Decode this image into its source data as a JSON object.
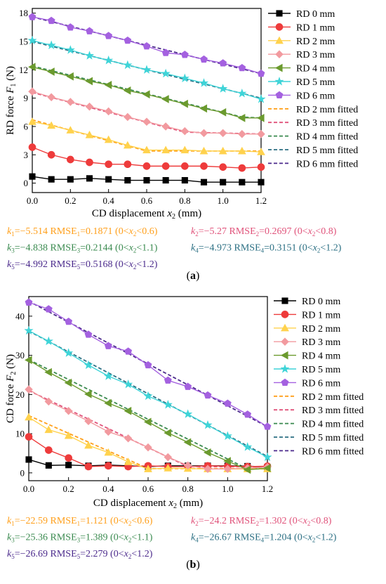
{
  "colors": {
    "rd0": "#000000",
    "rd1": "#ee3b3b",
    "rd2": "#ffd24d",
    "rd3": "#f29a9f",
    "rd4": "#6b9a2e",
    "rd5": "#3fd4d8",
    "rd6": "#a461e0",
    "fit2": "#ff9f1a",
    "fit3": "#e0527a",
    "fit4": "#3a8a4f",
    "fit5": "#2b6f83",
    "fit6": "#4b2a8c"
  },
  "chart_data": [
    {
      "type": "line",
      "panel_label": "(a)",
      "xlabel_text": "CD displacement ",
      "xlabel_var": "x",
      "xlabel_sub": "2",
      "xlabel_unit": " (mm)",
      "ylabel_text": "RD force ",
      "ylabel_var": "F",
      "ylabel_sub": "1",
      "ylabel_unit": " (N)",
      "xlim": [
        0,
        1.2
      ],
      "ylim": [
        -1,
        18.5
      ],
      "xticks": [
        "0.0",
        "0.2",
        "0.4",
        "0.6",
        "0.8",
        "1.0",
        "1.2"
      ],
      "yticks": [
        "0",
        "3",
        "6",
        "9",
        "12",
        "15",
        "18"
      ],
      "x": [
        0,
        0.1,
        0.2,
        0.3,
        0.4,
        0.5,
        0.6,
        0.7,
        0.8,
        0.9,
        1.0,
        1.1,
        1.2
      ],
      "series": [
        {
          "name": "RD 0 mm",
          "color_key": "rd0",
          "marker": "square",
          "values": [
            0.7,
            0.4,
            0.4,
            0.5,
            0.4,
            0.3,
            0.3,
            0.3,
            0.3,
            0.1,
            0.1,
            0.1,
            0.1
          ]
        },
        {
          "name": "RD 1 mm",
          "color_key": "rd1",
          "marker": "circle",
          "values": [
            3.8,
            3.0,
            2.5,
            2.2,
            2.0,
            2.0,
            1.8,
            1.8,
            1.8,
            1.8,
            1.7,
            1.6,
            1.7
          ]
        },
        {
          "name": "RD 2 mm",
          "color_key": "rd2",
          "marker": "triangle",
          "values": [
            6.5,
            6.1,
            5.6,
            5.1,
            4.6,
            4.0,
            3.5,
            3.5,
            3.5,
            3.4,
            3.4,
            3.4,
            3.3
          ]
        },
        {
          "name": "RD 3 mm",
          "color_key": "rd3",
          "marker": "diamond",
          "values": [
            9.7,
            9.1,
            8.6,
            8.1,
            7.6,
            7.0,
            6.5,
            6.0,
            5.5,
            5.3,
            5.3,
            5.2,
            5.2
          ]
        },
        {
          "name": "RD 4 mm",
          "color_key": "rd4",
          "marker": "triangle-left",
          "values": [
            12.3,
            11.8,
            11.3,
            10.8,
            10.4,
            9.8,
            9.4,
            8.9,
            8.4,
            7.9,
            7.5,
            6.9,
            6.9
          ]
        },
        {
          "name": "RD 5 mm",
          "color_key": "rd5",
          "marker": "star",
          "values": [
            15.1,
            14.6,
            14.1,
            13.5,
            13.0,
            12.5,
            12.0,
            11.6,
            11.1,
            10.6,
            10.0,
            9.5,
            8.9
          ]
        },
        {
          "name": "RD 6 mm",
          "color_key": "rd6",
          "marker": "pentagon",
          "values": [
            17.6,
            17.2,
            16.5,
            16.1,
            15.6,
            15.1,
            14.5,
            13.8,
            13.6,
            13.1,
            12.7,
            12.2,
            11.6
          ]
        }
      ],
      "fits": [
        {
          "name": "RD 2 mm fitted",
          "color_key": "fit2",
          "x": [
            0,
            0.6,
            1.2
          ],
          "values": [
            6.7,
            3.4,
            3.4
          ]
        },
        {
          "name": "RD 3 mm fitted",
          "color_key": "fit3",
          "x": [
            0,
            0.8,
            1.2
          ],
          "values": [
            9.6,
            5.4,
            5.2
          ]
        },
        {
          "name": "RD 4 mm fitted",
          "color_key": "fit4",
          "x": [
            0,
            1.1,
            1.2
          ],
          "values": [
            12.4,
            7.0,
            6.9
          ]
        },
        {
          "name": "RD 5 mm fitted",
          "color_key": "fit5",
          "x": [
            0,
            1.2
          ],
          "values": [
            15.0,
            9.0
          ]
        },
        {
          "name": "RD 6 mm fitted",
          "color_key": "fit6",
          "x": [
            0,
            1.2
          ],
          "values": [
            17.6,
            11.6
          ]
        }
      ],
      "fit_params": [
        {
          "color_key": "fit2",
          "k": "1",
          "kval": "=−5.514",
          "rmse_sub": "1",
          "rmse_val": "=0.1871",
          "cond_pre": "(0<",
          "cond_var": "x",
          "cond_sub": "2",
          "cond_post": "<0.6)"
        },
        {
          "color_key": "fit3",
          "k": "2",
          "kval": "=−5.27",
          "rmse_sub": "2",
          "rmse_val": "=0.2697",
          "cond_pre": "(0<",
          "cond_var": "x",
          "cond_sub": "2",
          "cond_post": "<0.8)"
        },
        {
          "color_key": "fit4",
          "k": "3",
          "kval": "=−4.838",
          "rmse_sub": "3",
          "rmse_val": "=0.2144",
          "cond_pre": "(0<",
          "cond_var": "x",
          "cond_sub": "2",
          "cond_post": "<1.1)"
        },
        {
          "color_key": "fit5",
          "k": "4",
          "kval": "=−4.973",
          "rmse_sub": "4",
          "rmse_val": "=0.3151",
          "cond_pre": "(0<",
          "cond_var": "x",
          "cond_sub": "2",
          "cond_post": "<1.2)"
        },
        {
          "color_key": "fit6",
          "k": "5",
          "kval": "=−4.992",
          "rmse_sub": "5",
          "rmse_val": "=0.5168",
          "cond_pre": "(0<",
          "cond_var": "x",
          "cond_sub": "2",
          "cond_post": "<1.2)"
        }
      ]
    },
    {
      "type": "line",
      "panel_label": "(b)",
      "xlabel_text": "CD displacement ",
      "xlabel_var": "x",
      "xlabel_sub": "2",
      "xlabel_unit": " (mm)",
      "ylabel_text": "CD force ",
      "ylabel_var": "F",
      "ylabel_sub": "2",
      "ylabel_unit": " (N)",
      "xlim": [
        0,
        1.2
      ],
      "ylim": [
        -2,
        45
      ],
      "xticks": [
        "0.0",
        "0.2",
        "0.4",
        "0.6",
        "0.8",
        "1.0",
        "1.2"
      ],
      "yticks": [
        "0",
        "10",
        "20",
        "30",
        "40"
      ],
      "x": [
        0,
        0.1,
        0.2,
        0.3,
        0.4,
        0.5,
        0.6,
        0.7,
        0.8,
        0.9,
        1.0,
        1.1,
        1.2
      ],
      "series": [
        {
          "name": "RD 0 mm",
          "color_key": "rd0",
          "marker": "square",
          "values": [
            3.4,
            1.9,
            2.0,
            1.8,
            2.0,
            1.8,
            1.6,
            1.8,
            1.8,
            1.8,
            1.8,
            1.7,
            1.5
          ]
        },
        {
          "name": "RD 1 mm",
          "color_key": "rd1",
          "marker": "circle",
          "values": [
            9.2,
            5.8,
            3.8,
            1.6,
            1.8,
            1.6,
            1.8,
            1.6,
            1.6,
            1.8,
            1.7,
            1.6,
            1.7
          ]
        },
        {
          "name": "RD 2 mm",
          "color_key": "rd2",
          "marker": "triangle",
          "values": [
            14.2,
            11.0,
            9.5,
            7.0,
            5.2,
            2.8,
            1.0,
            1.2,
            1.1,
            1.0,
            1.0,
            1.0,
            1.0
          ]
        },
        {
          "name": "RD 3 mm",
          "color_key": "rd3",
          "marker": "diamond",
          "values": [
            21.3,
            18.2,
            15.8,
            13.2,
            10.5,
            8.8,
            6.5,
            4.0,
            1.9,
            1.0,
            1.0,
            1.2,
            1.5
          ]
        },
        {
          "name": "RD 4 mm",
          "color_key": "rd4",
          "marker": "triangle-left",
          "values": [
            28.8,
            25.7,
            23.0,
            20.1,
            17.8,
            15.8,
            13.0,
            10.2,
            7.8,
            5.2,
            3.0,
            0.8,
            1.2
          ]
        },
        {
          "name": "RD 5 mm",
          "color_key": "rd5",
          "marker": "star",
          "values": [
            36.3,
            33.6,
            30.6,
            27.5,
            24.7,
            22.6,
            19.6,
            17.4,
            15.0,
            12.2,
            9.4,
            6.6,
            4.0
          ]
        },
        {
          "name": "RD 6 mm",
          "color_key": "rd6",
          "marker": "pentagon",
          "values": [
            43.5,
            41.8,
            38.6,
            35.3,
            32.4,
            31.0,
            27.5,
            23.6,
            22.0,
            19.8,
            17.7,
            14.9,
            11.8
          ]
        }
      ],
      "fits": [
        {
          "name": "RD 2 mm fitted",
          "color_key": "fit2",
          "x": [
            0,
            0.6,
            1.2
          ],
          "values": [
            14.6,
            1.1,
            1.1
          ]
        },
        {
          "name": "RD 3 mm fitted",
          "color_key": "fit3",
          "x": [
            0,
            0.8,
            1.2
          ],
          "values": [
            21.0,
            1.6,
            1.6
          ]
        },
        {
          "name": "RD 4 mm fitted",
          "color_key": "fit4",
          "x": [
            0,
            1.1,
            1.2
          ],
          "values": [
            28.9,
            1.0,
            1.0
          ]
        },
        {
          "name": "RD 5 mm fitted",
          "color_key": "fit5",
          "x": [
            0,
            1.2
          ],
          "values": [
            36.2,
            4.2
          ]
        },
        {
          "name": "RD 6 mm fitted",
          "color_key": "fit6",
          "x": [
            0,
            1.2
          ],
          "values": [
            43.8,
            11.8
          ]
        }
      ],
      "fit_params": [
        {
          "color_key": "fit2",
          "k": "1",
          "kval": "=−22.59",
          "rmse_sub": "1",
          "rmse_val": "=1.121",
          "cond_pre": "(0<",
          "cond_var": "x",
          "cond_sub": "2",
          "cond_post": "<0.6)"
        },
        {
          "color_key": "fit3",
          "k": "2",
          "kval": "=−24.2",
          "rmse_sub": "2",
          "rmse_val": "=1.302",
          "cond_pre": "(0<",
          "cond_var": "x",
          "cond_sub": "2",
          "cond_post": "<0.8)"
        },
        {
          "color_key": "fit4",
          "k": "3",
          "kval": "=−25.36",
          "rmse_sub": "3",
          "rmse_val": "=1.389",
          "cond_pre": "(0<",
          "cond_var": "x",
          "cond_sub": "2",
          "cond_post": "<1.1)"
        },
        {
          "color_key": "fit5",
          "k": "4",
          "kval": "=−26.67",
          "rmse_sub": "4",
          "rmse_val": "=1.204",
          "cond_pre": "(0<",
          "cond_var": "x",
          "cond_sub": "2",
          "cond_post": "<1.2)"
        },
        {
          "color_key": "fit6",
          "k": "5",
          "kval": "=−26.69",
          "rmse_sub": "5",
          "rmse_val": "=2.279",
          "cond_pre": "(0<",
          "cond_var": "x",
          "cond_sub": "2",
          "cond_post": "<1.2)"
        }
      ]
    }
  ]
}
